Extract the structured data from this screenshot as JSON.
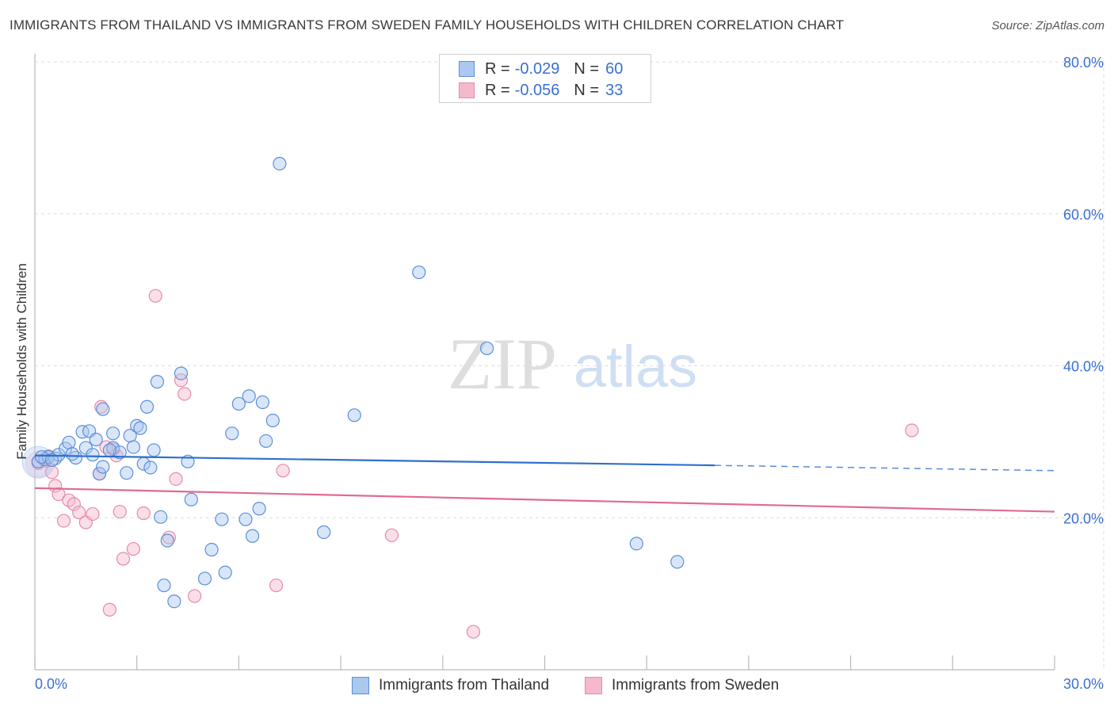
{
  "header": {
    "title": "IMMIGRANTS FROM THAILAND VS IMMIGRANTS FROM SWEDEN FAMILY HOUSEHOLDS WITH CHILDREN CORRELATION CHART",
    "source": "Source: ZipAtlas.com"
  },
  "watermark": {
    "zip": "ZIP",
    "atlas": "atlas"
  },
  "legend_top": [
    {
      "r_label": "R =",
      "r_value": "-0.029",
      "n_label": "N =",
      "n_value": "60"
    },
    {
      "r_label": "R =",
      "r_value": "-0.056",
      "n_label": "N =",
      "n_value": "33"
    }
  ],
  "legend_bottom": [
    "Immigrants from Thailand",
    "Immigrants from Sweden"
  ],
  "colors": {
    "thailand_fill": "#aac8f0",
    "thailand_stroke": "#5b8fd9",
    "thailand_line": "#2f6fce",
    "sweden_fill": "#f6b8cc",
    "sweden_stroke": "#e68aa8",
    "sweden_line": "#e06a95",
    "axis_label": "#3a6fd1",
    "grid": "#dddddd"
  },
  "chart_data": {
    "type": "scatter",
    "title": "IMMIGRANTS FROM THAILAND VS IMMIGRANTS FROM SWEDEN FAMILY HOUSEHOLDS WITH CHILDREN CORRELATION CHART",
    "xlabel": "",
    "ylabel": "Family Households with Children",
    "xlim": [
      0,
      30
    ],
    "ylim": [
      0,
      80
    ],
    "x_tick_labels": [
      "0.0%",
      "30.0%"
    ],
    "y_ticks": [
      20,
      40,
      60,
      80
    ],
    "y_tick_labels": [
      "20.0%",
      "40.0%",
      "60.0%",
      "80.0%"
    ],
    "grid": true,
    "series": [
      {
        "name": "Immigrants from Thailand",
        "r": -0.029,
        "n": 60,
        "trend": {
          "x": [
            0,
            20
          ],
          "y": [
            28.2,
            26.9
          ],
          "dashed_to": [
            30,
            26.2
          ]
        },
        "points": [
          [
            0.1,
            27.4
          ],
          [
            0.3,
            27.7
          ],
          [
            0.4,
            28.0
          ],
          [
            0.6,
            27.8
          ],
          [
            0.7,
            28.3
          ],
          [
            0.9,
            29.1
          ],
          [
            1.0,
            29.9
          ],
          [
            1.2,
            27.9
          ],
          [
            1.4,
            31.3
          ],
          [
            1.5,
            29.2
          ],
          [
            1.6,
            31.4
          ],
          [
            1.7,
            28.3
          ],
          [
            1.8,
            30.3
          ],
          [
            1.9,
            25.8
          ],
          [
            2.0,
            26.7
          ],
          [
            2.0,
            34.3
          ],
          [
            2.3,
            29.2
          ],
          [
            2.3,
            31.1
          ],
          [
            2.5,
            28.6
          ],
          [
            2.7,
            25.9
          ],
          [
            2.8,
            30.8
          ],
          [
            2.9,
            29.3
          ],
          [
            3.0,
            32.1
          ],
          [
            3.1,
            31.8
          ],
          [
            3.2,
            27.1
          ],
          [
            3.3,
            34.6
          ],
          [
            3.4,
            26.6
          ],
          [
            3.5,
            28.9
          ],
          [
            3.6,
            37.9
          ],
          [
            3.7,
            20.1
          ],
          [
            3.8,
            11.1
          ],
          [
            3.9,
            17.0
          ],
          [
            4.1,
            9.0
          ],
          [
            4.3,
            39.0
          ],
          [
            4.5,
            27.4
          ],
          [
            4.6,
            22.4
          ],
          [
            5.0,
            12.0
          ],
          [
            5.2,
            15.8
          ],
          [
            5.5,
            19.8
          ],
          [
            5.6,
            12.8
          ],
          [
            5.8,
            31.1
          ],
          [
            6.0,
            35.0
          ],
          [
            6.2,
            19.8
          ],
          [
            6.3,
            36.0
          ],
          [
            6.4,
            17.6
          ],
          [
            6.6,
            21.2
          ],
          [
            6.7,
            35.2
          ],
          [
            6.8,
            30.1
          ],
          [
            7.0,
            32.8
          ],
          [
            7.2,
            66.6
          ],
          [
            8.5,
            18.1
          ],
          [
            9.4,
            33.5
          ],
          [
            11.3,
            52.3
          ],
          [
            13.3,
            42.3
          ],
          [
            17.7,
            16.6
          ],
          [
            18.9,
            14.2
          ],
          [
            0.2,
            28.0
          ],
          [
            0.5,
            27.6
          ],
          [
            1.1,
            28.4
          ],
          [
            2.2,
            28.9
          ]
        ]
      },
      {
        "name": "Immigrants from Sweden",
        "r": -0.056,
        "n": 33,
        "trend": {
          "x": [
            0,
            30
          ],
          "y": [
            23.9,
            20.8
          ]
        },
        "points": [
          [
            0.1,
            27.2
          ],
          [
            0.3,
            27.5
          ],
          [
            0.4,
            28.1
          ],
          [
            0.5,
            26.0
          ],
          [
            0.6,
            24.2
          ],
          [
            0.7,
            23.1
          ],
          [
            0.85,
            19.6
          ],
          [
            1.0,
            22.3
          ],
          [
            1.15,
            21.8
          ],
          [
            1.3,
            20.7
          ],
          [
            1.5,
            19.4
          ],
          [
            1.7,
            20.5
          ],
          [
            1.9,
            25.8
          ],
          [
            1.95,
            34.6
          ],
          [
            2.1,
            29.3
          ],
          [
            2.2,
            7.9
          ],
          [
            2.4,
            28.2
          ],
          [
            2.5,
            20.8
          ],
          [
            2.6,
            14.6
          ],
          [
            2.9,
            15.9
          ],
          [
            3.2,
            20.6
          ],
          [
            3.55,
            49.2
          ],
          [
            3.95,
            17.4
          ],
          [
            4.15,
            25.1
          ],
          [
            4.3,
            38.1
          ],
          [
            4.4,
            36.3
          ],
          [
            4.7,
            9.7
          ],
          [
            7.1,
            11.1
          ],
          [
            7.3,
            26.2
          ],
          [
            10.5,
            17.7
          ],
          [
            12.9,
            5.0
          ],
          [
            25.8,
            31.5
          ],
          [
            2.3,
            29.0
          ]
        ]
      }
    ]
  }
}
